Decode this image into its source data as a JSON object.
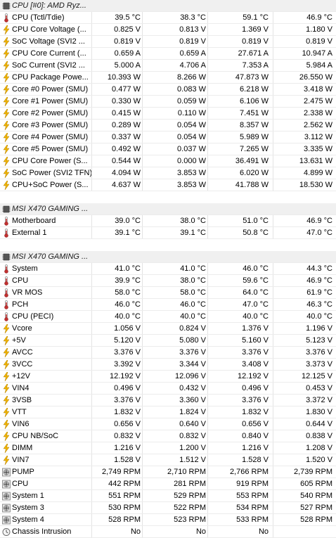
{
  "units": {
    "celsius": "°C",
    "volt": "V",
    "ampere": "A",
    "watt": "W",
    "rpm": "RPM"
  },
  "rows": [
    {
      "type": "header",
      "label": "CPU [#0]: AMD Ryz...",
      "icon": "chip-icon"
    },
    {
      "type": "sensor",
      "icon": "thermometer-icon",
      "label": "CPU (Tctl/Tdie)",
      "current": "39.5 °C",
      "min": "38.3 °C",
      "max": "59.1 °C",
      "avg": "46.9 °C"
    },
    {
      "type": "sensor",
      "icon": "lightning-icon",
      "label": "CPU Core Voltage (...",
      "current": "0.825 V",
      "min": "0.813 V",
      "max": "1.369 V",
      "avg": "1.180 V"
    },
    {
      "type": "sensor",
      "icon": "lightning-icon",
      "label": "SoC Voltage (SVI2 ...",
      "current": "0.819 V",
      "min": "0.819 V",
      "max": "0.819 V",
      "avg": "0.819 V"
    },
    {
      "type": "sensor",
      "icon": "lightning-icon",
      "label": "CPU Core Current (...",
      "current": "0.659 A",
      "min": "0.659 A",
      "max": "27.671 A",
      "avg": "10.947 A"
    },
    {
      "type": "sensor",
      "icon": "lightning-icon",
      "label": "SoC Current (SVI2 ...",
      "current": "5.000 A",
      "min": "4.706 A",
      "max": "7.353 A",
      "avg": "5.984 A"
    },
    {
      "type": "sensor",
      "icon": "lightning-icon",
      "label": "CPU Package Powe...",
      "current": "10.393 W",
      "min": "8.266 W",
      "max": "47.873 W",
      "avg": "26.550 W"
    },
    {
      "type": "sensor",
      "icon": "lightning-icon",
      "label": "Core #0 Power (SMU)",
      "current": "0.477 W",
      "min": "0.083 W",
      "max": "6.218 W",
      "avg": "3.418 W"
    },
    {
      "type": "sensor",
      "icon": "lightning-icon",
      "label": "Core #1 Power (SMU)",
      "current": "0.330 W",
      "min": "0.059 W",
      "max": "6.106 W",
      "avg": "2.475 W"
    },
    {
      "type": "sensor",
      "icon": "lightning-icon",
      "label": "Core #2 Power (SMU)",
      "current": "0.415 W",
      "min": "0.110 W",
      "max": "7.451 W",
      "avg": "2.338 W"
    },
    {
      "type": "sensor",
      "icon": "lightning-icon",
      "label": "Core #3 Power (SMU)",
      "current": "0.289 W",
      "min": "0.054 W",
      "max": "8.357 W",
      "avg": "2.562 W"
    },
    {
      "type": "sensor",
      "icon": "lightning-icon",
      "label": "Core #4 Power (SMU)",
      "current": "0.337 W",
      "min": "0.054 W",
      "max": "5.989 W",
      "avg": "3.112 W"
    },
    {
      "type": "sensor",
      "icon": "lightning-icon",
      "label": "Core #5 Power (SMU)",
      "current": "0.492 W",
      "min": "0.037 W",
      "max": "7.265 W",
      "avg": "3.335 W"
    },
    {
      "type": "sensor",
      "icon": "lightning-icon",
      "label": "CPU Core Power (S...",
      "current": "0.544 W",
      "min": "0.000 W",
      "max": "36.491 W",
      "avg": "13.631 W"
    },
    {
      "type": "sensor",
      "icon": "lightning-icon",
      "label": "SoC Power (SVI2 TFN)",
      "current": "4.094 W",
      "min": "3.853 W",
      "max": "6.020 W",
      "avg": "4.899 W"
    },
    {
      "type": "sensor",
      "icon": "lightning-icon",
      "label": "CPU+SoC Power (S...",
      "current": "4.637 W",
      "min": "3.853 W",
      "max": "41.788 W",
      "avg": "18.530 W"
    },
    {
      "type": "blank"
    },
    {
      "type": "header",
      "label": "MSI X470 GAMING ...",
      "icon": "chip-icon"
    },
    {
      "type": "sensor",
      "icon": "thermometer-icon",
      "label": "Motherboard",
      "current": "39.0 °C",
      "min": "38.0 °C",
      "max": "51.0 °C",
      "avg": "46.9 °C"
    },
    {
      "type": "sensor",
      "icon": "thermometer-icon",
      "label": "External 1",
      "current": "39.1 °C",
      "min": "39.1 °C",
      "max": "50.8 °C",
      "avg": "47.0 °C"
    },
    {
      "type": "blank"
    },
    {
      "type": "header",
      "label": "MSI X470 GAMING ...",
      "icon": "chip-icon"
    },
    {
      "type": "sensor",
      "icon": "thermometer-icon",
      "label": "System",
      "current": "41.0 °C",
      "min": "41.0 °C",
      "max": "46.0 °C",
      "avg": "44.3 °C"
    },
    {
      "type": "sensor",
      "icon": "thermometer-icon",
      "label": "CPU",
      "current": "39.9 °C",
      "min": "38.0 °C",
      "max": "59.6 °C",
      "avg": "46.9 °C"
    },
    {
      "type": "sensor",
      "icon": "thermometer-icon",
      "label": "VR MOS",
      "current": "58.0 °C",
      "min": "58.0 °C",
      "max": "64.0 °C",
      "avg": "61.9 °C"
    },
    {
      "type": "sensor",
      "icon": "thermometer-icon",
      "label": "PCH",
      "current": "46.0 °C",
      "min": "46.0 °C",
      "max": "47.0 °C",
      "avg": "46.3 °C"
    },
    {
      "type": "sensor",
      "icon": "thermometer-icon",
      "label": "CPU (PECI)",
      "current": "40.0 °C",
      "min": "40.0 °C",
      "max": "40.0 °C",
      "avg": "40.0 °C"
    },
    {
      "type": "sensor",
      "icon": "lightning-icon",
      "label": "Vcore",
      "current": "1.056 V",
      "min": "0.824 V",
      "max": "1.376 V",
      "avg": "1.196 V"
    },
    {
      "type": "sensor",
      "icon": "lightning-icon",
      "label": "+5V",
      "current": "5.120 V",
      "min": "5.080 V",
      "max": "5.160 V",
      "avg": "5.123 V"
    },
    {
      "type": "sensor",
      "icon": "lightning-icon",
      "label": "AVCC",
      "current": "3.376 V",
      "min": "3.376 V",
      "max": "3.376 V",
      "avg": "3.376 V"
    },
    {
      "type": "sensor",
      "icon": "lightning-icon",
      "label": "3VCC",
      "current": "3.392 V",
      "min": "3.344 V",
      "max": "3.408 V",
      "avg": "3.373 V"
    },
    {
      "type": "sensor",
      "icon": "lightning-icon",
      "label": "+12V",
      "current": "12.192 V",
      "min": "12.096 V",
      "max": "12.192 V",
      "avg": "12.125 V"
    },
    {
      "type": "sensor",
      "icon": "lightning-icon",
      "label": "VIN4",
      "current": "0.496 V",
      "min": "0.432 V",
      "max": "0.496 V",
      "avg": "0.453 V"
    },
    {
      "type": "sensor",
      "icon": "lightning-icon",
      "label": "3VSB",
      "current": "3.376 V",
      "min": "3.360 V",
      "max": "3.376 V",
      "avg": "3.372 V"
    },
    {
      "type": "sensor",
      "icon": "lightning-icon",
      "label": "VTT",
      "current": "1.832 V",
      "min": "1.824 V",
      "max": "1.832 V",
      "avg": "1.830 V"
    },
    {
      "type": "sensor",
      "icon": "lightning-icon",
      "label": "VIN6",
      "current": "0.656 V",
      "min": "0.640 V",
      "max": "0.656 V",
      "avg": "0.644 V"
    },
    {
      "type": "sensor",
      "icon": "lightning-icon",
      "label": "CPU NB/SoC",
      "current": "0.832 V",
      "min": "0.832 V",
      "max": "0.840 V",
      "avg": "0.838 V"
    },
    {
      "type": "sensor",
      "icon": "lightning-icon",
      "label": "DIMM",
      "current": "1.216 V",
      "min": "1.200 V",
      "max": "1.216 V",
      "avg": "1.208 V"
    },
    {
      "type": "sensor",
      "icon": "lightning-icon",
      "label": "VIN7",
      "current": "1.528 V",
      "min": "1.512 V",
      "max": "1.528 V",
      "avg": "1.520 V"
    },
    {
      "type": "sensor",
      "icon": "fan-icon",
      "label": "PUMP",
      "current": "2,749 RPM",
      "min": "2,710 RPM",
      "max": "2,766 RPM",
      "avg": "2,739 RPM"
    },
    {
      "type": "sensor",
      "icon": "fan-icon",
      "label": "CPU",
      "current": "442 RPM",
      "min": "281 RPM",
      "max": "919 RPM",
      "avg": "605 RPM"
    },
    {
      "type": "sensor",
      "icon": "fan-icon",
      "label": "System 1",
      "current": "551 RPM",
      "min": "529 RPM",
      "max": "553 RPM",
      "avg": "540 RPM"
    },
    {
      "type": "sensor",
      "icon": "fan-icon",
      "label": "System 3",
      "current": "530 RPM",
      "min": "522 RPM",
      "max": "534 RPM",
      "avg": "527 RPM"
    },
    {
      "type": "sensor",
      "icon": "fan-icon",
      "label": "System 4",
      "current": "528 RPM",
      "min": "523 RPM",
      "max": "533 RPM",
      "avg": "528 RPM"
    },
    {
      "type": "sensor",
      "icon": "clock-icon",
      "label": "Chassis Intrusion",
      "current": "No",
      "min": "No",
      "max": "No",
      "avg": ""
    }
  ],
  "colors": {
    "lightning": "#f0b400",
    "thermometer": "#c03030",
    "fan": "#808080",
    "header_bg": "#f0f0f0",
    "grid": "#e3e3e3"
  }
}
